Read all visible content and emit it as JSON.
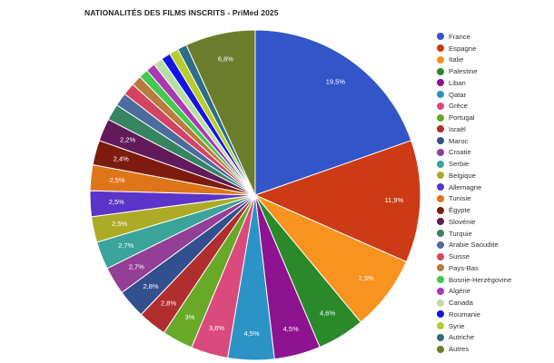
{
  "chart_data": {
    "type": "pie",
    "title": "NATIONALITÉS DES FILMS INSCRITS - PriMed 2025",
    "legend_position": "right",
    "slices": [
      {
        "name": "France",
        "value": 19.5,
        "label": "19,5%",
        "color": "#3255c8"
      },
      {
        "name": "Espagne",
        "value": 11.9,
        "label": "11,9%",
        "color": "#cc3b16"
      },
      {
        "name": "Italie",
        "value": 7.3,
        "label": "7,3%",
        "color": "#f7931e"
      },
      {
        "name": "Palestine",
        "value": 4.6,
        "label": "4,6%",
        "color": "#2a8a2a"
      },
      {
        "name": "Liban",
        "value": 4.5,
        "label": "4,5%",
        "color": "#8e1390"
      },
      {
        "name": "Qatar",
        "value": 4.5,
        "label": "4,5%",
        "color": "#2b93c5"
      },
      {
        "name": "Grèce",
        "value": 3.6,
        "label": "3,6%",
        "color": "#db4a7d"
      },
      {
        "name": "Portugal",
        "value": 3.0,
        "label": "3%",
        "color": "#68a928"
      },
      {
        "name": "Israël",
        "value": 2.8,
        "label": "2,8%",
        "color": "#b02e2e"
      },
      {
        "name": "Maroc",
        "value": 2.8,
        "label": "2,8%",
        "color": "#31508d"
      },
      {
        "name": "Croatie",
        "value": 2.7,
        "label": "2,7%",
        "color": "#933e97"
      },
      {
        "name": "Serbie",
        "value": 2.7,
        "label": "2,7%",
        "color": "#3aa39a"
      },
      {
        "name": "Belgique",
        "value": 2.5,
        "label": "2,5%",
        "color": "#adab25"
      },
      {
        "name": "Allemagne",
        "value": 2.5,
        "label": "2,5%",
        "color": "#5b34c9"
      },
      {
        "name": "Tunisie",
        "value": 2.5,
        "label": "2,5%",
        "color": "#df7519"
      },
      {
        "name": "Égypte",
        "value": 2.4,
        "label": "2,4%",
        "color": "#7d1c0e"
      },
      {
        "name": "Slovénie",
        "value": 2.2,
        "label": "2,2%",
        "color": "#621a5a"
      },
      {
        "name": "Turquie",
        "value": 1.6,
        "label": "",
        "color": "#358462"
      },
      {
        "name": "Arabie Saoudite",
        "value": 1.3,
        "label": "",
        "color": "#4d6b9c"
      },
      {
        "name": "Suisse",
        "value": 1.2,
        "label": "",
        "color": "#d24562"
      },
      {
        "name": "Pays-Bas",
        "value": 1.0,
        "label": "",
        "color": "#b97b3f"
      },
      {
        "name": "Bosnie-Herzégovine",
        "value": 0.9,
        "label": "",
        "color": "#43c94f"
      },
      {
        "name": "Algérie",
        "value": 0.9,
        "label": "",
        "color": "#ac37b5"
      },
      {
        "name": "Canada",
        "value": 0.9,
        "label": "",
        "color": "#b8dfa4"
      },
      {
        "name": "Roumanie",
        "value": 0.9,
        "label": "",
        "color": "#1414e0"
      },
      {
        "name": "Syrie",
        "value": 0.9,
        "label": "",
        "color": "#b6cc2f"
      },
      {
        "name": "Autriche",
        "value": 0.9,
        "label": "",
        "color": "#2d6e85"
      },
      {
        "name": "Autres",
        "value": 6.8,
        "label": "6,8%",
        "color": "#6b7d2a"
      }
    ]
  }
}
